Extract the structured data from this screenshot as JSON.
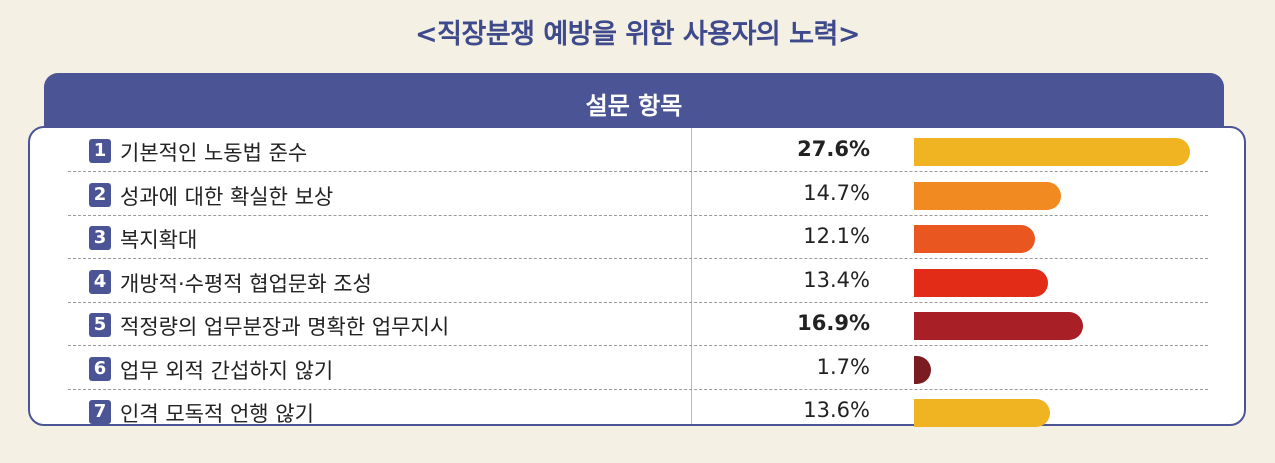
{
  "title": "<직장분쟁 예방을 위한 사용자의 노력>",
  "table_header": "설문 항목",
  "chart_data": {
    "type": "bar",
    "orientation": "horizontal",
    "title": "<직장분쟁 예방을 위한 사용자의 노력>",
    "xlim": [
      0,
      30
    ],
    "categories": [
      "기본적인 노동법 준수",
      "성과에 대한 확실한 보상",
      "복지확대",
      "개방적·수평적 협업문화 조성",
      "적정량의 업무분장과 명확한 업무지시",
      "업무 외적 간섭하지 않기",
      "인격 모독적 언행 않기"
    ],
    "values": [
      27.6,
      14.7,
      12.1,
      13.4,
      16.9,
      1.7,
      13.6
    ],
    "value_labels": [
      "27.6%",
      "14.7%",
      "12.1%",
      "13.4%",
      "16.9%",
      "1.7%",
      "13.6%"
    ],
    "emphasized": [
      true,
      false,
      false,
      false,
      true,
      false,
      false
    ],
    "numbers": [
      "1",
      "2",
      "3",
      "4",
      "5",
      "6",
      "7"
    ],
    "bar_colors": [
      "#f0b423",
      "#f18a21",
      "#e9561f",
      "#e22c17",
      "#a91f26",
      "#7b1c20",
      "#f0b423"
    ]
  }
}
